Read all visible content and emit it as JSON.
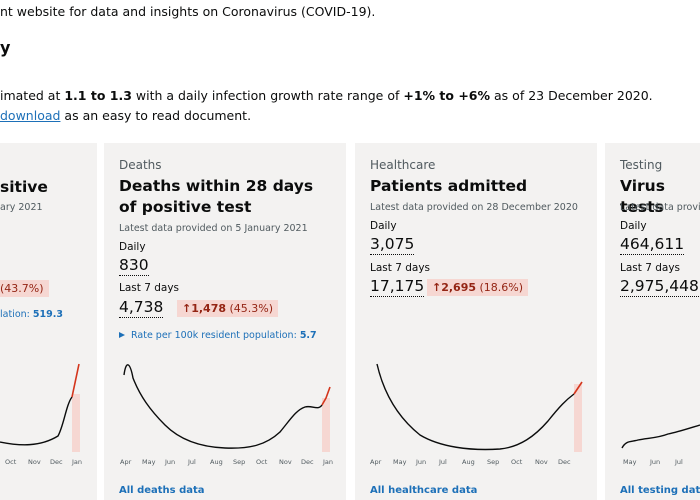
{
  "intro": {
    "line1": "nt website for data and insights on Coronavirus (COVID-19).",
    "heading": "y",
    "line3": {
      "a": "imated at ",
      "b": "1.1 to 1.3",
      "c": " with a daily infection growth rate range of ",
      "d": "+1% to +6%",
      "e": " as of 23 December 2020."
    },
    "line4": {
      "link": "download",
      "rest": " as an easy to read document."
    }
  },
  "cards": [
    {
      "title": "sitive",
      "updated": "ary 2021",
      "change_pct": "(43.7%)",
      "rate_label": "lation: ",
      "rate_value": "519.3",
      "months": [
        "Oct",
        "Nov",
        "Dec",
        "Jan"
      ]
    },
    {
      "caption": "Deaths",
      "title": "Deaths within 28 days of positive test",
      "updated": "Latest data provided on 5 January 2021",
      "daily_label": "Daily",
      "daily": "830",
      "week_label": "Last 7 days",
      "week": "4,738",
      "change": "↑1,478",
      "change_pct": "(45.3%)",
      "rate_label": "Rate per 100k resident population: ",
      "rate_value": "5.7",
      "months": [
        "Apr",
        "May",
        "Jun",
        "Jul",
        "Aug",
        "Sep",
        "Oct",
        "Nov",
        "Dec",
        "Jan"
      ],
      "link": "All deaths data"
    },
    {
      "caption": "Healthcare",
      "title": "Patients admitted",
      "updated": "Latest data provided on 28 December 2020",
      "daily_label": "Daily",
      "daily": "3,075",
      "week_label": "Last 7 days",
      "week": "17,175",
      "change": "↑2,695",
      "change_pct": "(18.6%)",
      "months": [
        "Apr",
        "May",
        "Jun",
        "Jul",
        "Aug",
        "Sep",
        "Oct",
        "Nov",
        "Dec"
      ],
      "link": "All healthcare data"
    },
    {
      "caption": "Testing",
      "title": "Virus tests",
      "updated": "Latest data providi",
      "daily_label": "Daily",
      "daily": "464,611",
      "week_label": "Last 7 days",
      "week": "2,975,448",
      "months": [
        "May",
        "Jun",
        "Jul"
      ],
      "link": "All testing data"
    }
  ]
}
